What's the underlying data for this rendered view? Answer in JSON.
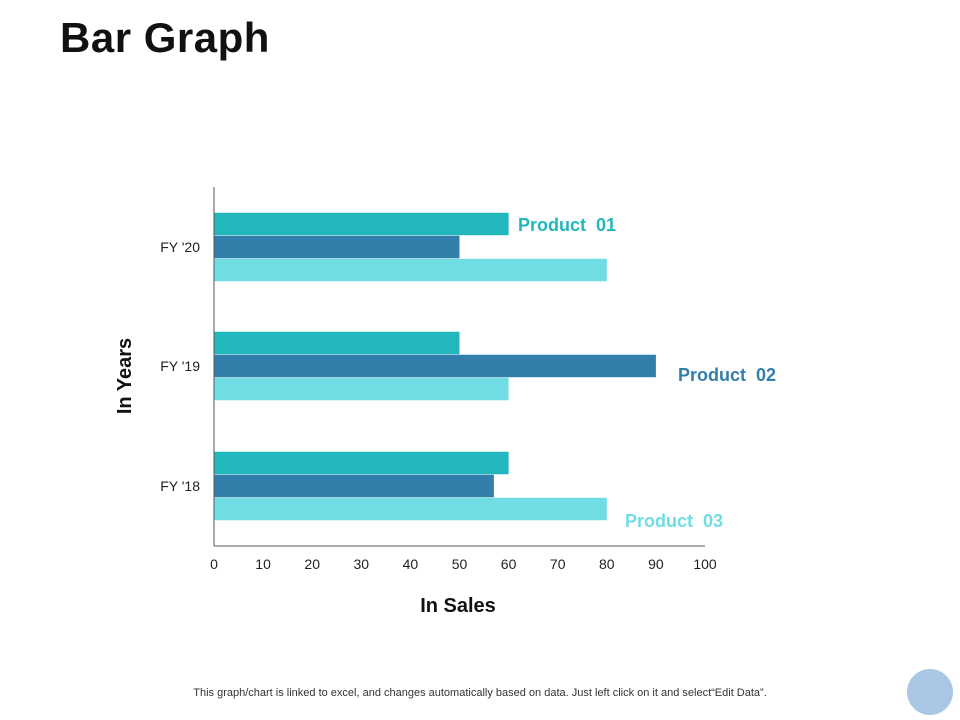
{
  "slide": {
    "title": "Bar Graph",
    "footer_note": "This graph/chart is linked to excel,  and changes automatically based on data. Just left click on it and select“Edit Data”."
  },
  "colors": {
    "product_01": "#22b7bd",
    "product_02": "#337fac",
    "product_03": "#6fdde3",
    "axis": "#555555",
    "decor_circle": "#a9c6e4"
  },
  "chart_data": {
    "type": "bar",
    "orientation": "horizontal",
    "categories": [
      "FY '18",
      "FY '19",
      "FY '20"
    ],
    "series": [
      {
        "name": "Product  01",
        "values": [
          60,
          50,
          60
        ]
      },
      {
        "name": "Product  02",
        "values": [
          57,
          90,
          50
        ]
      },
      {
        "name": "Product  03",
        "values": [
          80,
          60,
          80
        ]
      }
    ],
    "xlabel": "In Sales",
    "ylabel": "In Years",
    "xlim": [
      0,
      100
    ],
    "xticks": [
      0,
      10,
      20,
      30,
      40,
      50,
      60,
      70,
      80,
      90,
      100
    ],
    "grid": false
  }
}
